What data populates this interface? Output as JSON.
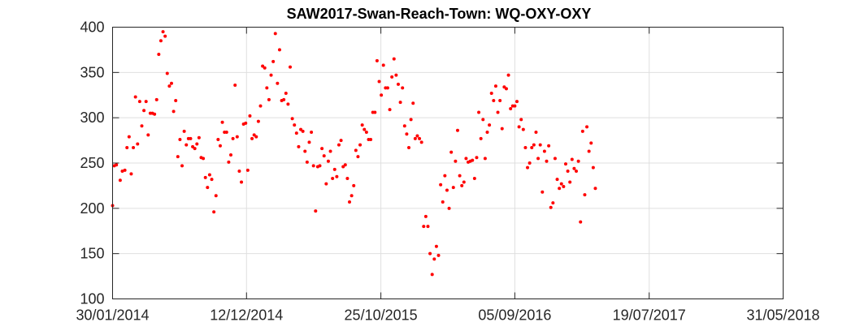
{
  "chart_data": {
    "type": "scatter",
    "title": "SAW2017-Swan-Reach-Town: WQ-OXY-OXY",
    "xlabel": "",
    "ylabel": "",
    "x_is_date": true,
    "xlim": [
      "2014-01-30",
      "2018-05-31"
    ],
    "ylim": [
      100,
      400
    ],
    "xticks": [
      {
        "value": "2014-01-30",
        "label": "30/01/2014"
      },
      {
        "value": "2014-12-12",
        "label": "12/12/2014"
      },
      {
        "value": "2015-10-25",
        "label": "25/10/2015"
      },
      {
        "value": "2016-09-05",
        "label": "05/09/2016"
      },
      {
        "value": "2017-07-19",
        "label": "19/07/2017"
      },
      {
        "value": "2018-05-31",
        "label": "31/05/2018"
      }
    ],
    "yticks": [
      100,
      150,
      200,
      250,
      300,
      350,
      400
    ],
    "grid": true,
    "legend": "none",
    "marker_color": "#ff0000",
    "series": [
      {
        "points": [
          [
            "2014-01-30",
            203
          ],
          [
            "2014-02-03",
            247
          ],
          [
            "2014-02-08",
            248
          ],
          [
            "2014-02-17",
            231
          ],
          [
            "2014-02-22",
            241
          ],
          [
            "2014-02-28",
            242
          ],
          [
            "2014-03-05",
            267
          ],
          [
            "2014-03-10",
            279
          ],
          [
            "2014-03-15",
            238
          ],
          [
            "2014-03-20",
            267
          ],
          [
            "2014-03-25",
            323
          ],
          [
            "2014-03-30",
            271
          ],
          [
            "2014-04-04",
            318
          ],
          [
            "2014-04-09",
            291
          ],
          [
            "2014-04-14",
            308
          ],
          [
            "2014-04-19",
            318
          ],
          [
            "2014-04-24",
            281
          ],
          [
            "2014-04-29",
            305
          ],
          [
            "2014-05-04",
            305
          ],
          [
            "2014-05-09",
            304
          ],
          [
            "2014-05-14",
            320
          ],
          [
            "2014-05-19",
            370
          ],
          [
            "2014-05-24",
            385
          ],
          [
            "2014-05-29",
            395
          ],
          [
            "2014-06-03",
            390
          ],
          [
            "2014-06-08",
            349
          ],
          [
            "2014-06-13",
            335
          ],
          [
            "2014-06-18",
            338
          ],
          [
            "2014-06-23",
            307
          ],
          [
            "2014-06-28",
            319
          ],
          [
            "2014-07-03",
            257
          ],
          [
            "2014-07-08",
            276
          ],
          [
            "2014-07-13",
            247
          ],
          [
            "2014-07-18",
            285
          ],
          [
            "2014-07-23",
            270
          ],
          [
            "2014-07-28",
            277
          ],
          [
            "2014-08-02",
            277
          ],
          [
            "2014-08-07",
            268
          ],
          [
            "2014-08-12",
            266
          ],
          [
            "2014-08-17",
            271
          ],
          [
            "2014-08-22",
            278
          ],
          [
            "2014-08-27",
            256
          ],
          [
            "2014-09-01",
            255
          ],
          [
            "2014-09-06",
            234
          ],
          [
            "2014-09-11",
            223
          ],
          [
            "2014-09-16",
            237
          ],
          [
            "2014-09-21",
            232
          ],
          [
            "2014-09-26",
            196
          ],
          [
            "2014-10-01",
            214
          ],
          [
            "2014-10-06",
            276
          ],
          [
            "2014-10-11",
            269
          ],
          [
            "2014-10-16",
            295
          ],
          [
            "2014-10-21",
            284
          ],
          [
            "2014-10-26",
            284
          ],
          [
            "2014-10-31",
            251
          ],
          [
            "2014-11-05",
            259
          ],
          [
            "2014-11-10",
            277
          ],
          [
            "2014-11-15",
            336
          ],
          [
            "2014-11-20",
            279
          ],
          [
            "2014-11-25",
            241
          ],
          [
            "2014-11-30",
            229
          ],
          [
            "2014-12-05",
            293
          ],
          [
            "2014-12-10",
            294
          ],
          [
            "2014-12-15",
            242
          ],
          [
            "2014-12-20",
            302
          ],
          [
            "2014-12-25",
            277
          ],
          [
            "2014-12-30",
            281
          ],
          [
            "2015-01-04",
            279
          ],
          [
            "2015-01-09",
            296
          ],
          [
            "2015-01-14",
            313
          ],
          [
            "2015-01-19",
            357
          ],
          [
            "2015-01-24",
            355
          ],
          [
            "2015-01-29",
            333
          ],
          [
            "2015-02-03",
            320
          ],
          [
            "2015-02-08",
            347
          ],
          [
            "2015-02-13",
            362
          ],
          [
            "2015-02-18",
            393
          ],
          [
            "2015-02-23",
            338
          ],
          [
            "2015-02-28",
            375
          ],
          [
            "2015-03-05",
            319
          ],
          [
            "2015-03-10",
            320
          ],
          [
            "2015-03-15",
            327
          ],
          [
            "2015-03-20",
            315
          ],
          [
            "2015-03-25",
            356
          ],
          [
            "2015-03-30",
            299
          ],
          [
            "2015-04-04",
            292
          ],
          [
            "2015-04-09",
            283
          ],
          [
            "2015-04-14",
            268
          ],
          [
            "2015-04-19",
            287
          ],
          [
            "2015-04-24",
            285
          ],
          [
            "2015-04-29",
            263
          ],
          [
            "2015-05-04",
            251
          ],
          [
            "2015-05-09",
            273
          ],
          [
            "2015-05-14",
            284
          ],
          [
            "2015-05-19",
            247
          ],
          [
            "2015-05-24",
            197
          ],
          [
            "2015-05-29",
            246
          ],
          [
            "2015-06-03",
            247
          ],
          [
            "2015-06-08",
            266
          ],
          [
            "2015-06-13",
            258
          ],
          [
            "2015-06-18",
            227
          ],
          [
            "2015-06-23",
            252
          ],
          [
            "2015-06-28",
            263
          ],
          [
            "2015-07-03",
            233
          ],
          [
            "2015-07-08",
            243
          ],
          [
            "2015-07-13",
            235
          ],
          [
            "2015-07-18",
            270
          ],
          [
            "2015-07-23",
            275
          ],
          [
            "2015-07-28",
            246
          ],
          [
            "2015-08-02",
            248
          ],
          [
            "2015-08-07",
            233
          ],
          [
            "2015-08-12",
            207
          ],
          [
            "2015-08-17",
            214
          ],
          [
            "2015-08-22",
            225
          ],
          [
            "2015-08-27",
            264
          ],
          [
            "2015-09-01",
            257
          ],
          [
            "2015-09-06",
            270
          ],
          [
            "2015-09-11",
            292
          ],
          [
            "2015-09-16",
            287
          ],
          [
            "2015-09-21",
            284
          ],
          [
            "2015-09-26",
            276
          ],
          [
            "2015-10-01",
            276
          ],
          [
            "2015-10-06",
            306
          ],
          [
            "2015-10-11",
            306
          ],
          [
            "2015-10-16",
            363
          ],
          [
            "2015-10-21",
            340
          ],
          [
            "2015-10-26",
            325
          ],
          [
            "2015-10-31",
            358
          ],
          [
            "2015-11-05",
            333
          ],
          [
            "2015-11-10",
            333
          ],
          [
            "2015-11-15",
            309
          ],
          [
            "2015-11-20",
            345
          ],
          [
            "2015-11-25",
            365
          ],
          [
            "2015-11-30",
            347
          ],
          [
            "2015-12-05",
            337
          ],
          [
            "2015-12-10",
            317
          ],
          [
            "2015-12-15",
            333
          ],
          [
            "2015-12-20",
            291
          ],
          [
            "2015-12-25",
            282
          ],
          [
            "2015-12-30",
            267
          ],
          [
            "2016-01-04",
            298
          ],
          [
            "2016-01-09",
            316
          ],
          [
            "2016-01-14",
            277
          ],
          [
            "2016-01-19",
            280
          ],
          [
            "2016-01-24",
            277
          ],
          [
            "2016-01-29",
            273
          ],
          [
            "2016-02-03",
            180
          ],
          [
            "2016-02-08",
            191
          ],
          [
            "2016-02-13",
            180
          ],
          [
            "2016-02-18",
            150
          ],
          [
            "2016-02-23",
            127
          ],
          [
            "2016-02-28",
            144
          ],
          [
            "2016-03-04",
            158
          ],
          [
            "2016-03-09",
            148
          ],
          [
            "2016-03-14",
            226
          ],
          [
            "2016-03-19",
            207
          ],
          [
            "2016-03-24",
            236
          ],
          [
            "2016-03-29",
            220
          ],
          [
            "2016-04-03",
            200
          ],
          [
            "2016-04-08",
            262
          ],
          [
            "2016-04-13",
            223
          ],
          [
            "2016-04-18",
            252
          ],
          [
            "2016-04-23",
            286
          ],
          [
            "2016-04-28",
            236
          ],
          [
            "2016-05-03",
            225
          ],
          [
            "2016-05-08",
            229
          ],
          [
            "2016-05-13",
            255
          ],
          [
            "2016-05-18",
            251
          ],
          [
            "2016-05-23",
            252
          ],
          [
            "2016-05-28",
            253
          ],
          [
            "2016-06-02",
            233
          ],
          [
            "2016-06-07",
            256
          ],
          [
            "2016-06-12",
            306
          ],
          [
            "2016-06-17",
            277
          ],
          [
            "2016-06-22",
            298
          ],
          [
            "2016-06-27",
            255
          ],
          [
            "2016-07-02",
            284
          ],
          [
            "2016-07-07",
            292
          ],
          [
            "2016-07-12",
            327
          ],
          [
            "2016-07-17",
            319
          ],
          [
            "2016-07-22",
            335
          ],
          [
            "2016-07-27",
            306
          ],
          [
            "2016-08-01",
            319
          ],
          [
            "2016-08-06",
            288
          ],
          [
            "2016-08-11",
            334
          ],
          [
            "2016-08-16",
            332
          ],
          [
            "2016-08-21",
            347
          ],
          [
            "2016-08-26",
            310
          ],
          [
            "2016-08-31",
            313
          ],
          [
            "2016-09-05",
            313
          ],
          [
            "2016-09-10",
            318
          ],
          [
            "2016-09-15",
            290
          ],
          [
            "2016-09-20",
            298
          ],
          [
            "2016-09-25",
            287
          ],
          [
            "2016-09-30",
            267
          ],
          [
            "2016-10-05",
            245
          ],
          [
            "2016-10-10",
            250
          ],
          [
            "2016-10-15",
            267
          ],
          [
            "2016-10-20",
            270
          ],
          [
            "2016-10-25",
            284
          ],
          [
            "2016-10-30",
            255
          ],
          [
            "2016-11-04",
            270
          ],
          [
            "2016-11-09",
            218
          ],
          [
            "2016-11-14",
            263
          ],
          [
            "2016-11-19",
            252
          ],
          [
            "2016-11-24",
            269
          ],
          [
            "2016-11-29",
            201
          ],
          [
            "2016-12-04",
            206
          ],
          [
            "2016-12-09",
            255
          ],
          [
            "2016-12-14",
            232
          ],
          [
            "2016-12-19",
            222
          ],
          [
            "2016-12-24",
            227
          ],
          [
            "2016-12-29",
            224
          ],
          [
            "2017-01-03",
            249
          ],
          [
            "2017-01-08",
            241
          ],
          [
            "2017-01-13",
            229
          ],
          [
            "2017-01-18",
            254
          ],
          [
            "2017-01-23",
            244
          ],
          [
            "2017-01-28",
            241
          ],
          [
            "2017-02-02",
            252
          ],
          [
            "2017-02-07",
            185
          ],
          [
            "2017-02-12",
            285
          ],
          [
            "2017-02-17",
            215
          ],
          [
            "2017-02-22",
            290
          ],
          [
            "2017-02-27",
            263
          ],
          [
            "2017-03-04",
            272
          ],
          [
            "2017-03-09",
            245
          ],
          [
            "2017-03-14",
            222
          ]
        ]
      }
    ]
  }
}
